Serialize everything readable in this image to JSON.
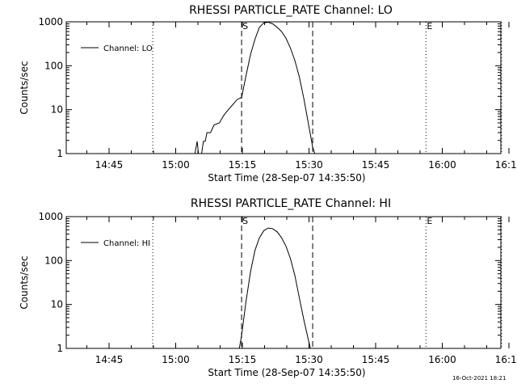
{
  "chart_data": [
    {
      "type": "line",
      "title": "RHESSI PARTICLE_RATE Channel: LO",
      "xlabel": "Start Time (28-Sep-07 14:35:50)",
      "ylabel": "Counts/sec",
      "yscale": "log",
      "ylim": [
        1,
        1000
      ],
      "y_tick_labels": [
        "1",
        "10",
        "100",
        "1000"
      ],
      "x_tick_labels": [
        "14:45",
        "15:00",
        "15:15",
        "15:30",
        "15:45",
        "16:00",
        "16:15"
      ],
      "legend": {
        "position": "top-left",
        "label": "Channel: LO"
      },
      "markers": [
        {
          "label": "S",
          "minutes": 39,
          "style": "dashed"
        },
        {
          "label": "",
          "minutes": 55,
          "style": "dashed"
        },
        {
          "label": "E",
          "minutes": 80.5,
          "style": "dotted"
        }
      ],
      "dotted_lines_minutes": [
        19,
        80.5,
        97.5
      ],
      "series": [
        {
          "name": "Channel: LO",
          "points": [
            [
              25,
              1
            ],
            [
              28.5,
              1
            ],
            [
              29,
              1.9
            ],
            [
              29.3,
              1
            ],
            [
              30,
              1
            ],
            [
              30.4,
              1.9
            ],
            [
              30.8,
              1.9
            ],
            [
              31.2,
              3
            ],
            [
              32,
              3
            ],
            [
              32.8,
              4.5
            ],
            [
              34,
              5
            ],
            [
              35,
              7.5
            ],
            [
              36,
              10
            ],
            [
              37,
              13
            ],
            [
              38,
              17
            ],
            [
              39,
              19
            ],
            [
              40,
              60
            ],
            [
              41,
              180
            ],
            [
              42,
              400
            ],
            [
              43,
              750
            ],
            [
              44,
              950
            ],
            [
              45,
              980
            ],
            [
              46,
              900
            ],
            [
              47,
              750
            ],
            [
              48,
              600
            ],
            [
              49,
              420
            ],
            [
              50,
              250
            ],
            [
              51,
              130
            ],
            [
              52,
              55
            ],
            [
              53,
              18
            ],
            [
              54,
              5
            ],
            [
              55,
              1.4
            ],
            [
              55.5,
              1
            ]
          ]
        }
      ]
    },
    {
      "type": "line",
      "title": "RHESSI PARTICLE_RATE Channel: HI",
      "xlabel": "Start Time (28-Sep-07 14:35:50)",
      "ylabel": "Counts/sec",
      "yscale": "log",
      "ylim": [
        1,
        1000
      ],
      "y_tick_labels": [
        "1",
        "10",
        "100",
        "1000"
      ],
      "x_tick_labels": [
        "14:45",
        "15:00",
        "15:15",
        "15:30",
        "15:45",
        "16:00",
        "16:15"
      ],
      "legend": {
        "position": "top-left",
        "label": "Channel: HI"
      },
      "markers": [
        {
          "label": "S",
          "minutes": 39,
          "style": "dashed"
        },
        {
          "label": "",
          "minutes": 55,
          "style": "dashed"
        },
        {
          "label": "E",
          "minutes": 80.5,
          "style": "dotted"
        }
      ],
      "dotted_lines_minutes": [
        19,
        80.5,
        97.5
      ],
      "series": [
        {
          "name": "Channel: HI",
          "points": [
            [
              38.5,
              1
            ],
            [
              39,
              2
            ],
            [
              40,
              12
            ],
            [
              41,
              55
            ],
            [
              42,
              170
            ],
            [
              43,
              330
            ],
            [
              44,
              480
            ],
            [
              45,
              550
            ],
            [
              46,
              530
            ],
            [
              47,
              450
            ],
            [
              48,
              330
            ],
            [
              49,
              210
            ],
            [
              50,
              110
            ],
            [
              51,
              45
            ],
            [
              52,
              14
            ],
            [
              53,
              4.5
            ],
            [
              54,
              1.6
            ],
            [
              54.5,
              1
            ]
          ]
        }
      ]
    }
  ],
  "footer": {
    "timestamp": "16-Oct-2021 18:21"
  }
}
